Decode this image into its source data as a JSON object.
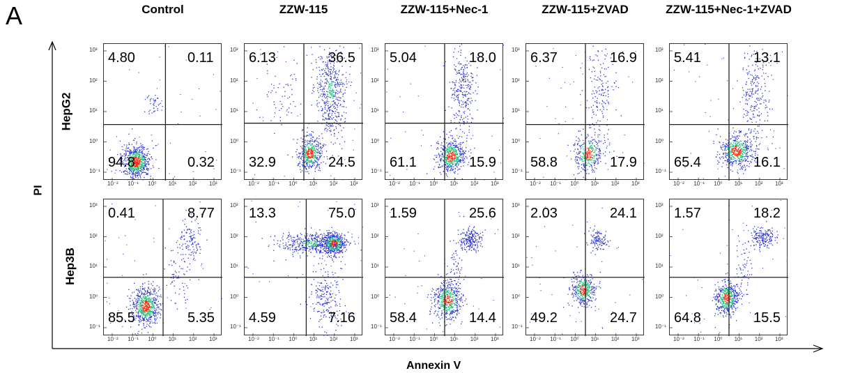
{
  "panel_letter": "A",
  "axes": {
    "x_title": "Annexin V",
    "y_title": "PI"
  },
  "palette": {
    "low": "#2a34d6",
    "mid": "#1fc27a",
    "high": "#ff2a10",
    "gate": "#222222"
  },
  "chart_data": {
    "type": "scatter",
    "columns": [
      "Control",
      "ZZW-115",
      "ZZW-115+Nec-1",
      "ZZW-115+ZVAD",
      "ZZW-115+Nec-1+ZVAD"
    ],
    "rows": [
      "HepG2",
      "Hep3B"
    ],
    "quadrant_order": [
      "upper-left",
      "upper-right",
      "lower-left",
      "lower-right"
    ],
    "quadrants": [
      [
        {
          "ul": "4.80",
          "ur": "0.11",
          "ll": "94.8",
          "lr": "0.32"
        },
        {
          "ul": "6.13",
          "ur": "36.5",
          "ll": "32.9",
          "lr": "24.5"
        },
        {
          "ul": "5.04",
          "ur": "18.0",
          "ll": "61.1",
          "lr": "15.9"
        },
        {
          "ul": "6.37",
          "ur": "16.9",
          "ll": "58.8",
          "lr": "17.9"
        },
        {
          "ul": "5.41",
          "ur": "13.1",
          "ll": "65.4",
          "lr": "16.1"
        }
      ],
      [
        {
          "ul": "0.41",
          "ur": "8.77",
          "ll": "85.5",
          "lr": "5.35"
        },
        {
          "ul": "13.3",
          "ur": "75.0",
          "ll": "4.59",
          "lr": "7.16"
        },
        {
          "ul": "1.59",
          "ur": "25.6",
          "ll": "58.4",
          "lr": "14.4"
        },
        {
          "ul": "2.03",
          "ur": "24.1",
          "ll": "49.2",
          "lr": "24.7"
        },
        {
          "ul": "1.57",
          "ur": "18.2",
          "ll": "64.8",
          "lr": "15.5"
        }
      ]
    ],
    "x_ticks": [
      "10⁻²",
      "10⁻¹",
      "10⁰",
      "10¹",
      "10²",
      "10³"
    ],
    "y_ticks": [
      [
        "10⁻¹",
        "10⁰",
        "10¹",
        "10²",
        "10³"
      ],
      [
        "10⁻¹",
        "10⁰",
        "10¹",
        "10²",
        "10³"
      ]
    ],
    "x_scale": "log",
    "y_scale": "log",
    "xlim": [
      0.01,
      1000
    ],
    "ylim": [
      0.1,
      1000
    ]
  }
}
